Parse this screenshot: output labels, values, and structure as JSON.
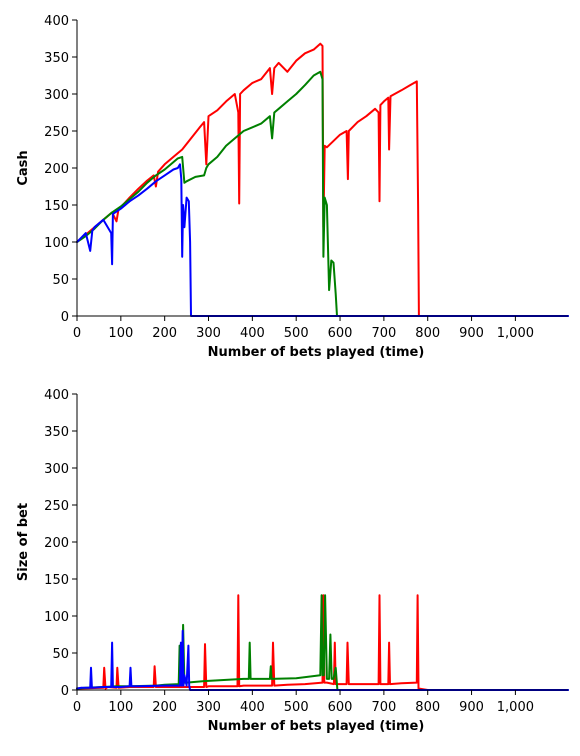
{
  "chart_data": [
    {
      "type": "line",
      "title": "",
      "xlabel": "Number of bets played (time)",
      "ylabel": "Cash",
      "xlim": [
        0,
        1120
      ],
      "ylim": [
        0,
        400
      ],
      "x_ticks": [
        0,
        100,
        200,
        300,
        400,
        500,
        600,
        700,
        800,
        900,
        1000
      ],
      "x_tick_labels": [
        "0",
        "100",
        "200",
        "300",
        "400",
        "500",
        "600",
        "700",
        "800",
        "900",
        "1,000"
      ],
      "y_ticks": [
        0,
        50,
        100,
        150,
        200,
        250,
        300,
        350,
        400
      ],
      "y_tick_labels": [
        "0",
        "50",
        "100",
        "150",
        "200",
        "250",
        "300",
        "350",
        "400"
      ],
      "grid": false,
      "series": [
        {
          "color": "#ff0000",
          "x": [
            0,
            20,
            40,
            60,
            80,
            90,
            95,
            100,
            120,
            140,
            160,
            175,
            180,
            185,
            200,
            220,
            240,
            260,
            280,
            290,
            295,
            300,
            320,
            340,
            360,
            368,
            370,
            372,
            380,
            400,
            420,
            440,
            445,
            450,
            460,
            480,
            500,
            520,
            540,
            555,
            560,
            562,
            565,
            570,
            600,
            615,
            618,
            620,
            640,
            660,
            680,
            688,
            690,
            692,
            700,
            710,
            712,
            715,
            740,
            760,
            775,
            778,
            780,
            800,
            1120
          ],
          "y": [
            100,
            110,
            120,
            130,
            140,
            128,
            145,
            147,
            160,
            172,
            183,
            190,
            175,
            195,
            205,
            215,
            225,
            240,
            255,
            262,
            205,
            270,
            278,
            290,
            300,
            275,
            152,
            300,
            305,
            315,
            320,
            335,
            300,
            335,
            342,
            330,
            345,
            355,
            360,
            368,
            365,
            120,
            230,
            228,
            245,
            250,
            185,
            250,
            262,
            270,
            280,
            275,
            155,
            285,
            290,
            295,
            225,
            297,
            305,
            312,
            317,
            150,
            0,
            0,
            0
          ]
        },
        {
          "color": "#008000",
          "x": [
            0,
            20,
            40,
            60,
            80,
            100,
            120,
            140,
            160,
            180,
            200,
            220,
            230,
            240,
            245,
            250,
            270,
            290,
            295,
            300,
            320,
            340,
            360,
            380,
            400,
            420,
            440,
            445,
            450,
            460,
            480,
            500,
            520,
            540,
            555,
            560,
            562,
            565,
            570,
            575,
            580,
            585,
            590,
            593,
            600,
            1120
          ],
          "y": [
            100,
            108,
            118,
            130,
            140,
            148,
            158,
            168,
            180,
            190,
            198,
            208,
            213,
            215,
            180,
            182,
            188,
            190,
            200,
            205,
            215,
            230,
            240,
            250,
            255,
            260,
            270,
            240,
            275,
            280,
            290,
            300,
            312,
            325,
            330,
            320,
            80,
            160,
            150,
            35,
            75,
            72,
            30,
            0,
            0,
            0
          ]
        },
        {
          "color": "#0000ff",
          "x": [
            0,
            10,
            20,
            30,
            35,
            40,
            60,
            78,
            80,
            82,
            100,
            120,
            140,
            160,
            180,
            200,
            220,
            230,
            235,
            238,
            240,
            242,
            245,
            250,
            255,
            258,
            260,
            270,
            1120
          ],
          "y": [
            100,
            106,
            112,
            88,
            115,
            120,
            130,
            112,
            70,
            138,
            145,
            155,
            163,
            172,
            182,
            190,
            198,
            200,
            205,
            185,
            80,
            150,
            120,
            160,
            155,
            100,
            0,
            0,
            0
          ]
        }
      ]
    },
    {
      "type": "line",
      "title": "",
      "xlabel": "Number of bets played (time)",
      "ylabel": "Size of bet",
      "xlim": [
        0,
        1120
      ],
      "ylim": [
        0,
        400
      ],
      "x_ticks": [
        0,
        100,
        200,
        300,
        400,
        500,
        600,
        700,
        800,
        900,
        1000
      ],
      "x_tick_labels": [
        "0",
        "100",
        "200",
        "300",
        "400",
        "500",
        "600",
        "700",
        "800",
        "900",
        "1,000"
      ],
      "y_ticks": [
        0,
        50,
        100,
        150,
        200,
        250,
        300,
        350,
        400
      ],
      "y_tick_labels": [
        "0",
        "50",
        "100",
        "150",
        "200",
        "250",
        "300",
        "350",
        "400"
      ],
      "grid": false,
      "series": [
        {
          "color": "#ff0000",
          "x": [
            0,
            60,
            62,
            65,
            70,
            90,
            92,
            95,
            120,
            175,
            177,
            180,
            290,
            292,
            295,
            300,
            366,
            368,
            370,
            380,
            445,
            447,
            450,
            480,
            520,
            560,
            562,
            564,
            570,
            586,
            588,
            590,
            615,
            617,
            620,
            640,
            688,
            690,
            692,
            700,
            710,
            712,
            714,
            740,
            775,
            777,
            779,
            800,
            1120
          ],
          "y": [
            2,
            3,
            30,
            2,
            4,
            3,
            30,
            3,
            4,
            4,
            32,
            4,
            4,
            62,
            4,
            5,
            5,
            128,
            5,
            6,
            6,
            64,
            6,
            7,
            8,
            10,
            128,
            10,
            10,
            8,
            64,
            8,
            8,
            64,
            8,
            8,
            8,
            128,
            8,
            8,
            8,
            64,
            8,
            9,
            10,
            128,
            2,
            0,
            0
          ]
        },
        {
          "color": "#008000",
          "x": [
            0,
            20,
            60,
            90,
            120,
            180,
            200,
            232,
            234,
            236,
            240,
            242,
            245,
            250,
            290,
            380,
            392,
            394,
            396,
            440,
            442,
            444,
            500,
            555,
            558,
            560,
            563,
            566,
            570,
            575,
            578,
            581,
            585,
            590,
            594,
            600,
            1120
          ],
          "y": [
            2,
            3,
            4,
            5,
            5,
            6,
            7,
            8,
            60,
            8,
            10,
            88,
            10,
            10,
            12,
            15,
            15,
            64,
            15,
            15,
            32,
            15,
            16,
            20,
            128,
            20,
            20,
            128,
            15,
            15,
            75,
            15,
            15,
            30,
            0,
            0,
            0
          ]
        },
        {
          "color": "#0000ff",
          "x": [
            0,
            10,
            30,
            32,
            34,
            60,
            78,
            80,
            82,
            100,
            120,
            122,
            124,
            140,
            200,
            235,
            237,
            239,
            241,
            243,
            245,
            250,
            254,
            256,
            258,
            262,
            1120
          ],
          "y": [
            2,
            3,
            3,
            30,
            3,
            4,
            4,
            64,
            4,
            4,
            5,
            30,
            5,
            5,
            6,
            6,
            64,
            6,
            80,
            6,
            20,
            6,
            60,
            6,
            0,
            0,
            0
          ]
        }
      ]
    }
  ]
}
